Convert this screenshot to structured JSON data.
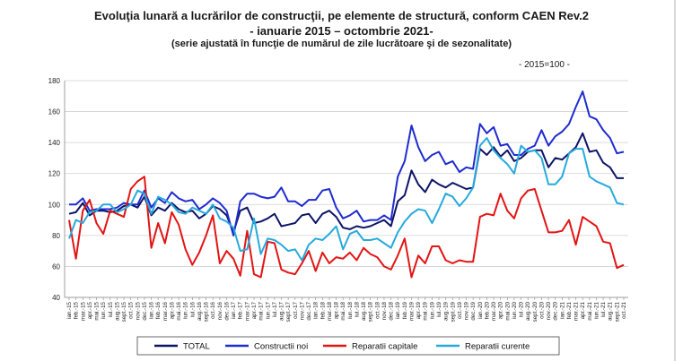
{
  "chart_data": {
    "type": "line",
    "title": "Evoluţia lunară a lucrărilor de construcţii, pe elemente de structură, conform CAEN Rev.2",
    "subtitle": "- ianuarie 2015 – octombrie 2021-",
    "subtitle2": "(serie ajustată în funcţie de numărul de zile lucrătoare şi de sezonalitate)",
    "note": "- 2015=100 -",
    "ylim": [
      40,
      180
    ],
    "yticks": [
      40,
      60,
      80,
      100,
      120,
      140,
      160,
      180
    ],
    "grid": "horizontal",
    "legend": "bottom",
    "x": [
      "ian.-15",
      "feb.-15",
      "mar.-15",
      "apr.-15",
      "mai.-15",
      "iun.-15",
      "iul.-15",
      "aug.-15",
      "sept.-15",
      "oct.-15",
      "nov.-15",
      "dec.-15",
      "ian.-16",
      "feb.-16",
      "mar.-16",
      "apr.-16",
      "mai.-16",
      "iun.-16",
      "iul.-16",
      "aug.-16",
      "sept.-16",
      "oct.-16",
      "nov.-16",
      "dec.-16",
      "ian.-17",
      "feb.-17",
      "mar.-17",
      "apr.-17",
      "mai.-17",
      "iun.-17",
      "iul.-17",
      "aug.-17",
      "sept.-17",
      "oct.-17",
      "nov.-17",
      "dec.-17",
      "ian.-18",
      "feb.-18",
      "mar.-18",
      "apr.-18",
      "mai.-18",
      "iun.-18",
      "iul.-18",
      "aug.-18",
      "sept.-18",
      "oct.-18",
      "nov.-18",
      "dec.-18",
      "ian.-19",
      "feb.-19",
      "mar.-19",
      "apr.-19",
      "mai.-19",
      "iun.-19",
      "iul.-19",
      "aug.-19",
      "sept.-19",
      "oct.-19",
      "nov.-19",
      "dec.-19",
      "ian.-20",
      "feb.-20",
      "mar.-20",
      "apr.-20",
      "mai.-20",
      "iun.-20",
      "iul.-20",
      "aug.-20",
      "sept.-20",
      "oct.-20",
      "nov.-20",
      "dec.-20",
      "ian.-21",
      "feb.-21",
      "mar.-21",
      "apr.-21",
      "mai.-21",
      "iun.-21",
      "iul.-21",
      "aug.-21",
      "sept.-21",
      "oct.-21"
    ],
    "series": [
      {
        "name": "TOTAL",
        "color": "#0d1466",
        "values": [
          94,
          95,
          101,
          93,
          96,
          96,
          95,
          96,
          99,
          100,
          98,
          105,
          93,
          98,
          96,
          101,
          97,
          95,
          96,
          91,
          94,
          99,
          97,
          93,
          82,
          96,
          98,
          88,
          89,
          91,
          94,
          86,
          87,
          88,
          93,
          94,
          88,
          94,
          96,
          92,
          85,
          84,
          86,
          85,
          86,
          88,
          90,
          86,
          102,
          106,
          122,
          113,
          108,
          116,
          113,
          111,
          114,
          112,
          110,
          111,
          136,
          132,
          137,
          131,
          135,
          128,
          130,
          134,
          135,
          135,
          124,
          130,
          129,
          133,
          137,
          146,
          134,
          135,
          127,
          124,
          117,
          117
        ]
      },
      {
        "name": "Constructii noi",
        "color": "#1f2ccf",
        "values": [
          100,
          100,
          104,
          96,
          97,
          97,
          97,
          98,
          101,
          100,
          100,
          109,
          98,
          104,
          101,
          108,
          104,
          102,
          103,
          97,
          100,
          104,
          101,
          96,
          80,
          102,
          107,
          107,
          105,
          104,
          105,
          111,
          102,
          102,
          99,
          103,
          103,
          109,
          110,
          98,
          91,
          93,
          96,
          89,
          90,
          90,
          93,
          90,
          118,
          128,
          151,
          137,
          128,
          132,
          134,
          126,
          128,
          121,
          124,
          123,
          152,
          146,
          150,
          138,
          139,
          132,
          132,
          136,
          138,
          148,
          138,
          144,
          147,
          152,
          163,
          173,
          157,
          155,
          148,
          143,
          133,
          134
        ]
      },
      {
        "name": "Reparatii capitale",
        "color": "#e31414",
        "values": [
          90,
          65,
          96,
          103,
          88,
          81,
          96,
          94,
          92,
          110,
          115,
          118,
          72,
          88,
          75,
          95,
          87,
          71,
          61,
          69,
          80,
          93,
          62,
          70,
          65,
          54,
          83,
          55,
          53,
          76,
          75,
          58,
          56,
          55,
          62,
          70,
          57,
          69,
          62,
          66,
          65,
          69,
          64,
          72,
          68,
          66,
          60,
          58,
          67,
          78,
          53,
          67,
          62,
          73,
          73,
          64,
          62,
          64,
          63,
          63,
          92,
          94,
          93,
          107,
          96,
          91,
          104,
          109,
          110,
          96,
          82,
          82,
          83,
          90,
          74,
          92,
          89,
          86,
          76,
          75,
          59,
          61
        ]
      },
      {
        "name": "Reparatii curente",
        "color": "#26aadc",
        "values": [
          78,
          90,
          88,
          95,
          96,
          100,
          100,
          95,
          97,
          100,
          109,
          107,
          94,
          105,
          103,
          100,
          95,
          94,
          98,
          96,
          94,
          100,
          91,
          89,
          85,
          70,
          71,
          91,
          68,
          78,
          77,
          74,
          70,
          71,
          64,
          74,
          78,
          77,
          81,
          86,
          71,
          81,
          83,
          77,
          77,
          78,
          75,
          72,
          82,
          89,
          94,
          97,
          96,
          88,
          97,
          107,
          105,
          99,
          104,
          111,
          138,
          143,
          135,
          130,
          126,
          120,
          138,
          134,
          135,
          130,
          113,
          113,
          118,
          133,
          136,
          136,
          118,
          115,
          113,
          111,
          101,
          100
        ]
      }
    ]
  }
}
